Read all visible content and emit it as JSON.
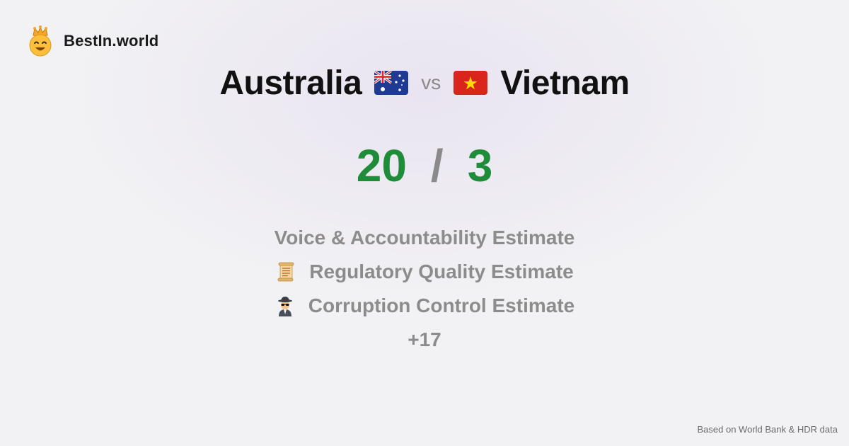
{
  "brand": {
    "name": "BestIn.world",
    "logo_icon": "crown-smiley-icon"
  },
  "comparison": {
    "left_country": "Australia",
    "left_flag_icon": "australia-flag-icon",
    "vs_label": "vs",
    "right_country": "Vietnam",
    "right_flag_icon": "vietnam-flag-icon"
  },
  "score": {
    "left": "20",
    "separator": "/",
    "right": "3"
  },
  "metrics": [
    {
      "label": "Voice & Accountability Estimate",
      "icon": ""
    },
    {
      "label": "Regulatory Quality Estimate",
      "icon": "scroll-icon"
    },
    {
      "label": "Corruption Control Estimate",
      "icon": "spy-icon"
    }
  ],
  "more_label": "+17",
  "footer": {
    "source_text": "Based on World Bank & HDR data"
  },
  "colors": {
    "score_green": "#1f8c3a",
    "muted_gray": "#8c8c8c"
  }
}
